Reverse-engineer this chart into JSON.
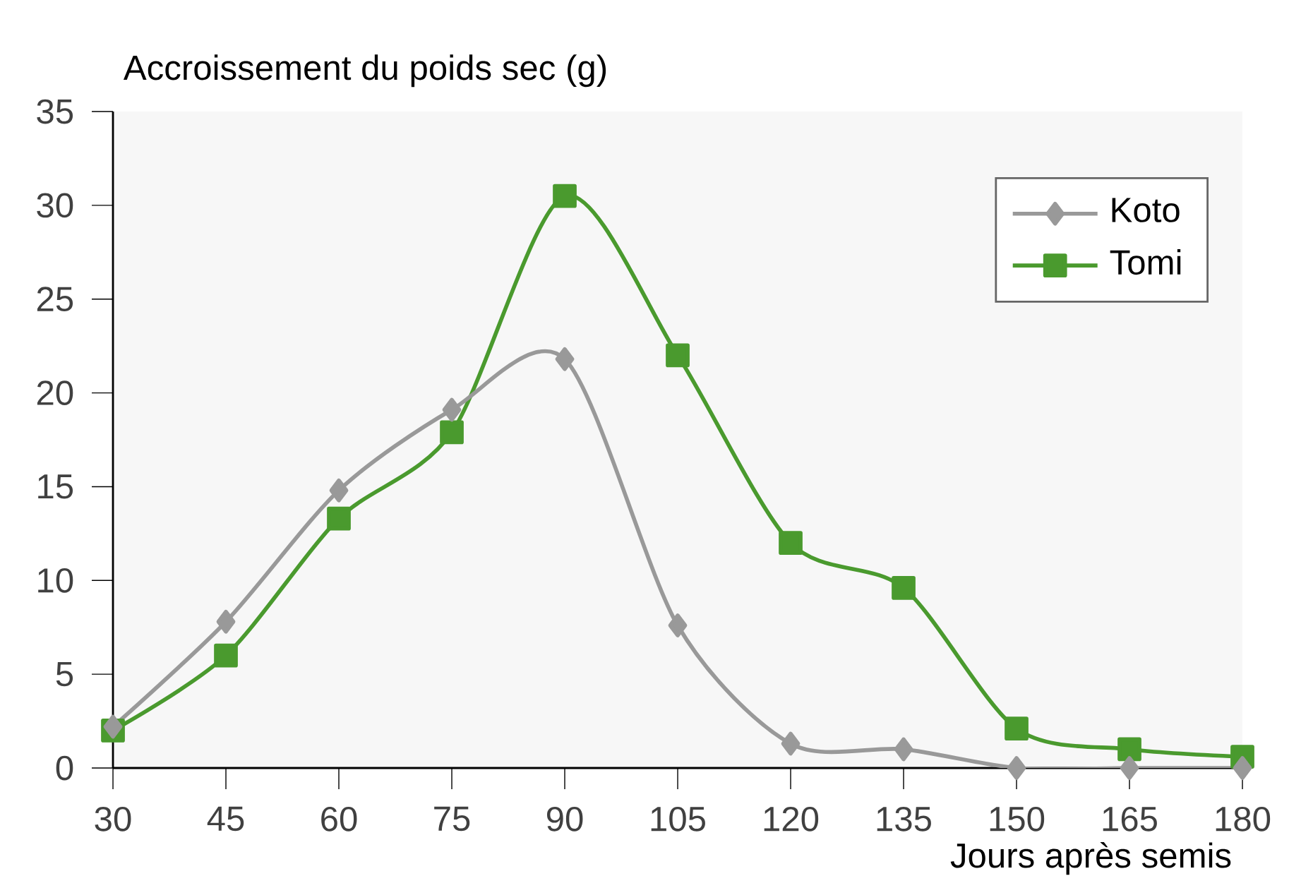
{
  "chart_data": {
    "type": "line",
    "ylabel": "Accroissement du poids sec (g)",
    "xlabel": "Jours après semis",
    "x": [
      30,
      45,
      60,
      75,
      90,
      105,
      120,
      135,
      150,
      165,
      180
    ],
    "series": [
      {
        "name": "Koto",
        "color": "#999999",
        "marker": "diamond",
        "values": [
          2.2,
          7.8,
          14.8,
          19.1,
          21.8,
          7.6,
          1.3,
          1.0,
          0.0,
          0.0,
          0.0
        ]
      },
      {
        "name": "Tomi",
        "color": "#4a9a2e",
        "marker": "square",
        "values": [
          2.0,
          6.0,
          13.3,
          17.9,
          30.5,
          22.0,
          12.0,
          9.6,
          2.1,
          1.0,
          0.6
        ]
      }
    ],
    "xlim": [
      30,
      180
    ],
    "xticks": [
      30,
      45,
      60,
      75,
      90,
      105,
      120,
      135,
      150,
      165,
      180
    ],
    "ylim": [
      0,
      35
    ],
    "yticks": [
      0,
      5,
      10,
      15,
      20,
      25,
      30,
      35
    ],
    "legend": "top right",
    "grid": false
  }
}
